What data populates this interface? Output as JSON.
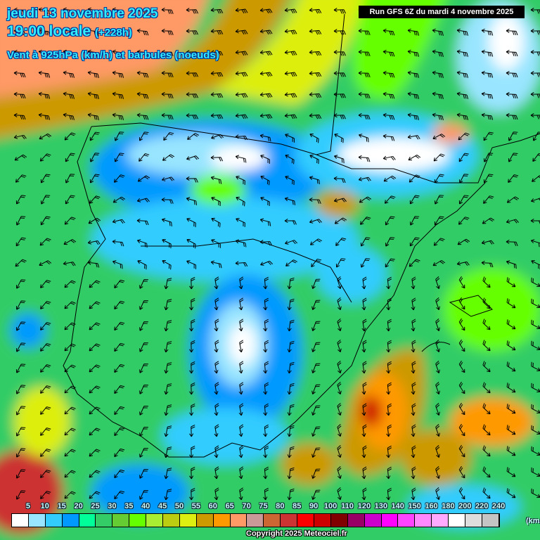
{
  "header": {
    "date": "jeudi 13 novembre 2025",
    "time": "19:00 locale",
    "offset": "(+228h)",
    "variable": "Vent à 925hPa (km/h) et barbules (noeuds)",
    "run": "Run GFS 6Z du mardi 4 novembre 2025"
  },
  "legend": {
    "labels": [
      "5",
      "10",
      "15",
      "20",
      "25",
      "30",
      "35",
      "40",
      "45",
      "50",
      "55",
      "60",
      "65",
      "70",
      "75",
      "80",
      "85",
      "90",
      "100",
      "110",
      "120",
      "130",
      "140",
      "150",
      "160",
      "180",
      "200",
      "220",
      "240"
    ],
    "colors": [
      "#ffffff",
      "#99e5ff",
      "#33ccff",
      "#0099ff",
      "#00ff99",
      "#33cc66",
      "#66cc33",
      "#66ff00",
      "#aaee33",
      "#bbcc11",
      "#ddee11",
      "#cc9900",
      "#ff9900",
      "#ff9966",
      "#cc9999",
      "#cc6633",
      "#cc3333",
      "#ff0000",
      "#cc0000",
      "#800000",
      "#990066",
      "#cc00cc",
      "#ff00ff",
      "#ff44ff",
      "#ff88ff",
      "#ffaaff",
      "#ffffff",
      "#dddddd",
      "#c4c4c4"
    ],
    "unit": "(km/h)"
  },
  "copyright": "Copyright 2025 Meteociel.fr"
}
